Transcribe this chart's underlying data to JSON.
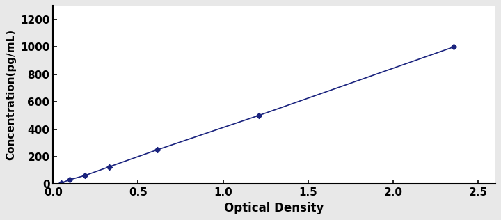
{
  "x_data": [
    0.047,
    0.097,
    0.188,
    0.329,
    0.614,
    1.21,
    2.356
  ],
  "y_data": [
    7,
    31,
    62,
    125,
    250,
    500,
    1000
  ],
  "line_color": "#1a237e",
  "marker_color": "#1a237e",
  "marker_style": "D",
  "marker_size": 4,
  "line_style": "-",
  "line_width": 1.2,
  "xlabel": "Optical Density",
  "ylabel": "Concentration(pg/mL)",
  "xlim": [
    0,
    2.6
  ],
  "ylim": [
    0,
    1300
  ],
  "xticks": [
    0,
    0.5,
    1,
    1.5,
    2,
    2.5
  ],
  "yticks": [
    0,
    200,
    400,
    600,
    800,
    1000,
    1200
  ],
  "xlabel_fontsize": 12,
  "ylabel_fontsize": 11,
  "tick_fontsize": 11,
  "figure_width": 7.2,
  "figure_height": 3.16,
  "dpi": 100,
  "bg_color": "#e8e8e8",
  "plot_bg_color": "#ffffff"
}
